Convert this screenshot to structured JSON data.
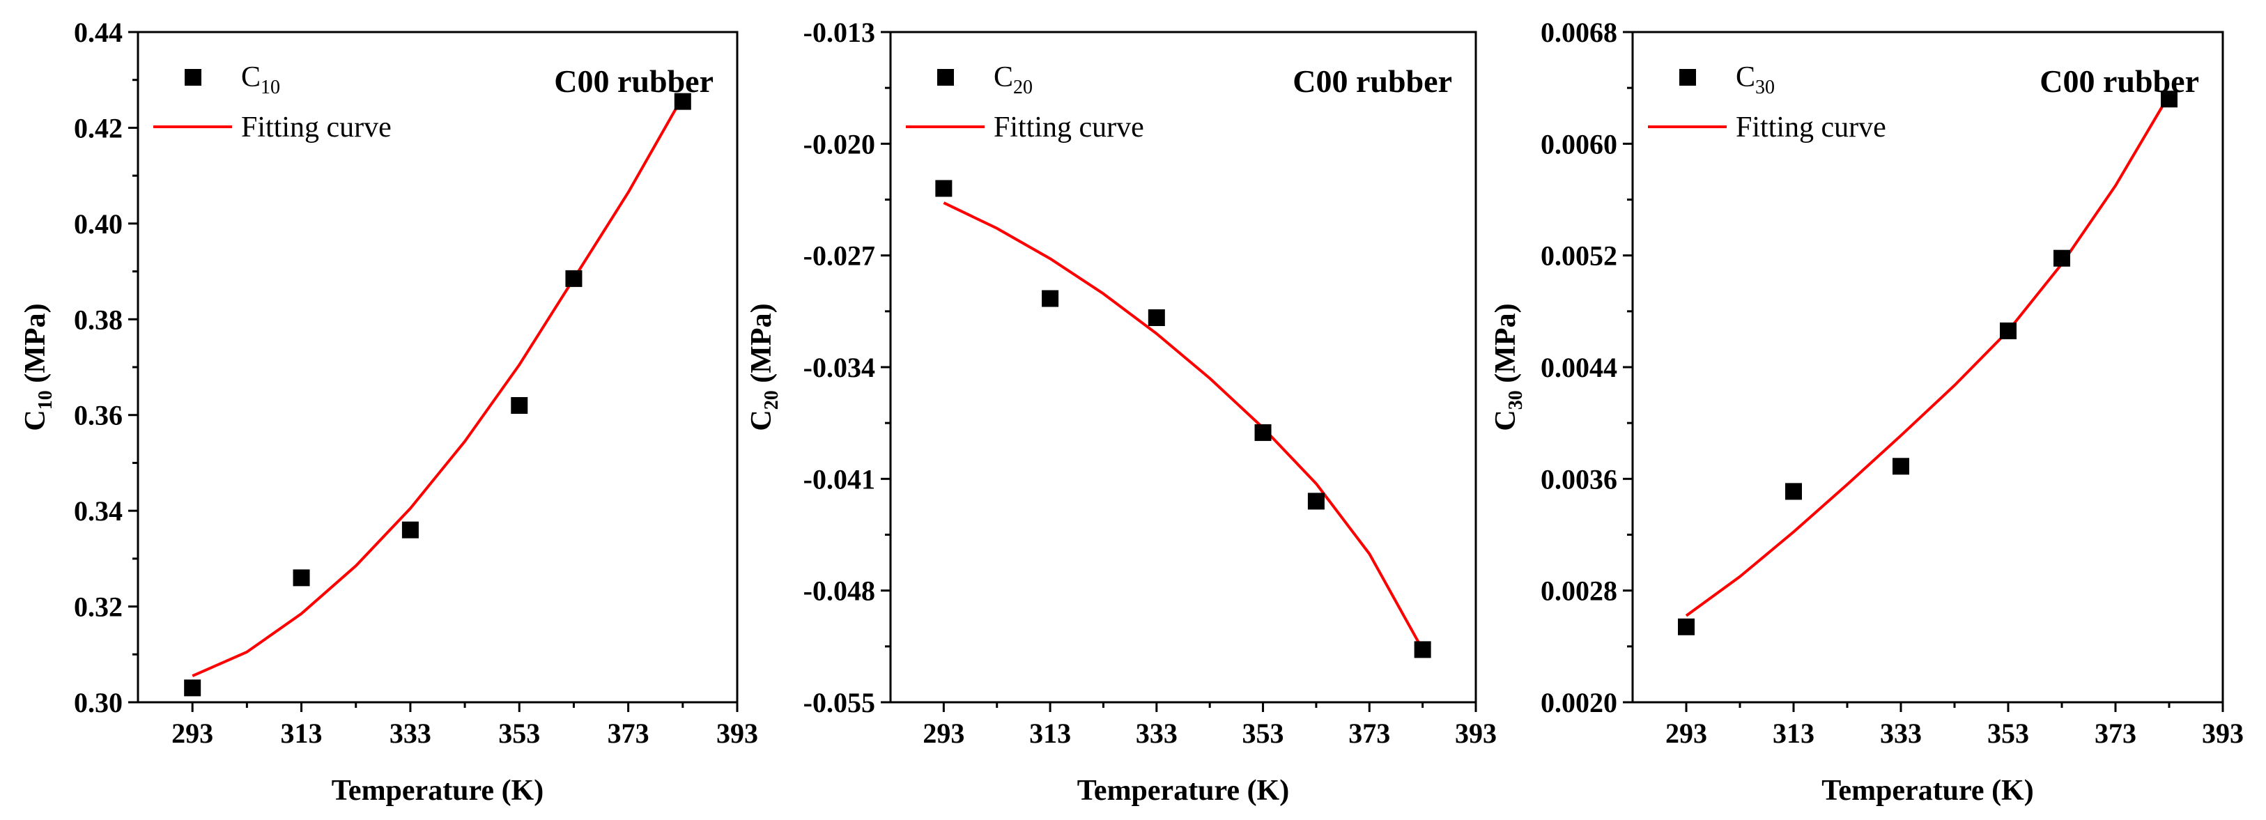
{
  "colors": {
    "fit": "#ff0000",
    "marker": "#000000",
    "axis": "#000000",
    "background": "#ffffff"
  },
  "chart_data": [
    {
      "type": "scatter",
      "title": "",
      "annotation": "C00 rubber",
      "xlabel": "Temperature (K)",
      "ylabel_main": "C",
      "ylabel_sub": "10",
      "ylabel_unit": " (MPa)",
      "xlim": [
        283,
        393
      ],
      "ylim": [
        0.3,
        0.44
      ],
      "xticks": [
        293,
        313,
        333,
        353,
        373,
        393
      ],
      "xtick_labels": [
        "293",
        "313",
        "333",
        "353",
        "373",
        "393"
      ],
      "yticks": [
        0.3,
        0.32,
        0.34,
        0.36,
        0.38,
        0.4,
        0.42,
        0.44
      ],
      "ytick_labels": [
        "0.30",
        "0.32",
        "0.34",
        "0.36",
        "0.38",
        "0.40",
        "0.42",
        "0.44"
      ],
      "legend": {
        "marker_main": "C",
        "marker_sub": "10",
        "line_label": "Fitting curve",
        "position": "top-left"
      },
      "series": [
        {
          "name": "C10",
          "kind": "scatter",
          "x": [
            293,
            313,
            333,
            353,
            363,
            383
          ],
          "y": [
            0.303,
            0.326,
            0.336,
            0.362,
            0.3885,
            0.4255
          ]
        },
        {
          "name": "Fitting curve",
          "kind": "line",
          "x": [
            293,
            303,
            313,
            323,
            333,
            343,
            353,
            363,
            373,
            383
          ],
          "y": [
            0.3055,
            0.3105,
            0.3185,
            0.3285,
            0.3405,
            0.3545,
            0.3705,
            0.3885,
            0.4065,
            0.4265
          ]
        }
      ]
    },
    {
      "type": "scatter",
      "title": "",
      "annotation": "C00 rubber",
      "xlabel": "Temperature (K)",
      "ylabel_main": "C",
      "ylabel_sub": "20",
      "ylabel_unit": " (MPa)",
      "xlim": [
        283,
        393
      ],
      "ylim": [
        -0.055,
        -0.013
      ],
      "xticks": [
        293,
        313,
        333,
        353,
        373,
        393
      ],
      "xtick_labels": [
        "293",
        "313",
        "333",
        "353",
        "373",
        "393"
      ],
      "yticks": [
        -0.055,
        -0.048,
        -0.041,
        -0.034,
        -0.027,
        -0.02,
        -0.013
      ],
      "ytick_labels": [
        "-0.055",
        "-0.048",
        "-0.041",
        "-0.034",
        "-0.027",
        "-0.020",
        "-0.013"
      ],
      "legend": {
        "marker_main": "C",
        "marker_sub": "20",
        "line_label": "Fitting curve",
        "position": "top-left"
      },
      "series": [
        {
          "name": "C20",
          "kind": "scatter",
          "x": [
            293,
            313,
            333,
            353,
            363,
            383
          ],
          "y": [
            -0.0228,
            -0.0297,
            -0.0309,
            -0.0381,
            -0.0424,
            -0.0517
          ]
        },
        {
          "name": "Fitting curve",
          "kind": "line",
          "x": [
            293,
            303,
            313,
            323,
            333,
            343,
            353,
            363,
            373,
            383
          ],
          "y": [
            -0.0237,
            -0.0253,
            -0.0272,
            -0.0294,
            -0.0319,
            -0.0347,
            -0.0378,
            -0.0413,
            -0.0457,
            -0.0517
          ]
        }
      ]
    },
    {
      "type": "scatter",
      "title": "",
      "annotation": "C00 rubber",
      "xlabel": "Temperature (K)",
      "ylabel_main": "C",
      "ylabel_sub": "30",
      "ylabel_unit": " (MPa)",
      "xlim": [
        283,
        393
      ],
      "ylim": [
        0.002,
        0.0068
      ],
      "xticks": [
        293,
        313,
        333,
        353,
        373,
        393
      ],
      "xtick_labels": [
        "293",
        "313",
        "333",
        "353",
        "373",
        "393"
      ],
      "yticks": [
        0.002,
        0.0028,
        0.0036,
        0.0044,
        0.0052,
        0.006,
        0.0068
      ],
      "ytick_labels": [
        "0.0020",
        "0.0028",
        "0.0036",
        "0.0044",
        "0.0052",
        "0.0060",
        "0.0068"
      ],
      "legend": {
        "marker_main": "C",
        "marker_sub": "30",
        "line_label": "Fitting curve",
        "position": "top-left"
      },
      "series": [
        {
          "name": "C30",
          "kind": "scatter",
          "x": [
            293,
            313,
            333,
            353,
            363,
            383
          ],
          "y": [
            0.00254,
            0.00351,
            0.00369,
            0.00466,
            0.00518,
            0.00632
          ]
        },
        {
          "name": "Fitting curve",
          "kind": "line",
          "x": [
            293,
            303,
            313,
            323,
            333,
            343,
            353,
            363,
            373,
            383
          ],
          "y": [
            0.00262,
            0.0029,
            0.00322,
            0.00356,
            0.00391,
            0.00427,
            0.00466,
            0.00514,
            0.0057,
            0.00635
          ]
        }
      ]
    }
  ]
}
